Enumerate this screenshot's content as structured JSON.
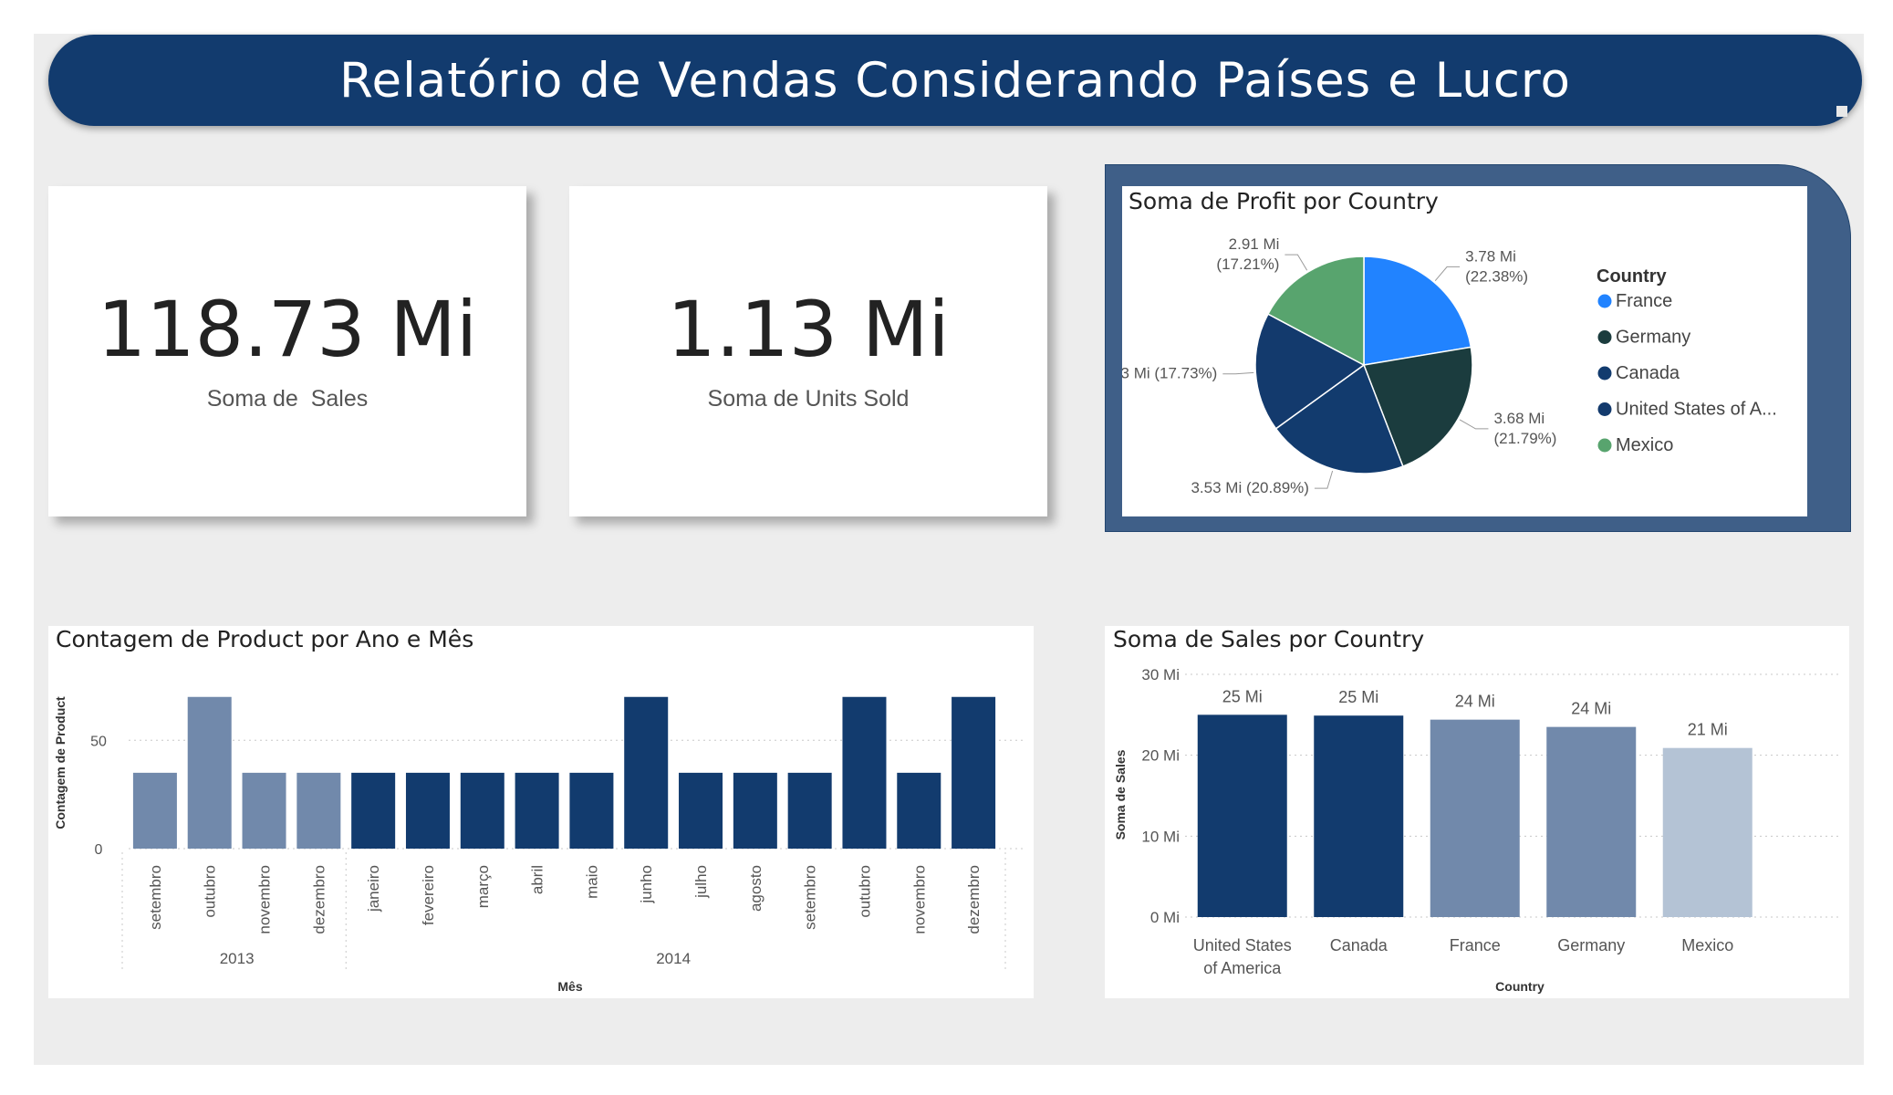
{
  "header": {
    "title": "Relatório de Vendas Considerando Países e Lucro"
  },
  "kpis": [
    {
      "value": "118.73 Mi",
      "label": "Soma de  Sales"
    },
    {
      "value": "1.13 Mi",
      "label": "Soma de Units Sold"
    }
  ],
  "colors": {
    "navy": "#123b6e",
    "steel": "#7189ab",
    "light_steel": "#b4c3d5",
    "france": "#2183ff",
    "germany": "#1b3c3e",
    "canada": "#123b6e",
    "usa": "#133a6d",
    "mexico": "#58a46e"
  },
  "chart_data": [
    {
      "type": "pie",
      "title": "Soma de Profit por Country",
      "legend_title": "Country",
      "legend_position": "right",
      "slices": [
        {
          "name": "France",
          "legend_label": "France",
          "value": 3.78,
          "label": "3.78 Mi (22.38%)",
          "color": "#2183ff"
        },
        {
          "name": "Germany",
          "legend_label": "Germany",
          "value": 3.68,
          "label": "3.68 Mi (21.79%)",
          "color": "#1b3c3e"
        },
        {
          "name": "Canada",
          "legend_label": "Canada",
          "value": 3.53,
          "label": "3.53 Mi (20.89%)",
          "color": "#123b6e"
        },
        {
          "name": "United States of America",
          "legend_label": "United States of A...",
          "value": 3.0,
          "label": "3 Mi (17.73%)",
          "color": "#133a6d"
        },
        {
          "name": "Mexico",
          "legend_label": "Mexico",
          "value": 2.91,
          "label": "2.91 Mi (17.21%)",
          "color": "#58a46e"
        }
      ]
    },
    {
      "type": "bar",
      "title": "Contagem de Product por Ano e Mês",
      "xlabel": "Mês",
      "ylabel": "Contagem de Product",
      "ylim": [
        0,
        80
      ],
      "yticks": [
        0,
        50
      ],
      "grid": true,
      "groups": [
        {
          "label": "2013",
          "months": [
            "setembro",
            "outubro",
            "novembro",
            "dezembro"
          ],
          "values": [
            35,
            70,
            35,
            35
          ]
        },
        {
          "label": "2014",
          "months": [
            "janeiro",
            "fevereiro",
            "março",
            "abril",
            "maio",
            "junho",
            "julho",
            "agosto",
            "setembro",
            "outubro",
            "novembro",
            "dezembro"
          ],
          "values": [
            35,
            35,
            35,
            35,
            35,
            70,
            35,
            35,
            35,
            70,
            35,
            70
          ]
        }
      ]
    },
    {
      "type": "bar",
      "title": "Soma de Sales por Country",
      "xlabel": "Country",
      "ylabel": "Soma de Sales",
      "ylim": [
        0,
        30
      ],
      "yticks": [
        0,
        10,
        20,
        30
      ],
      "ytick_labels": [
        "0 Mi",
        "10 Mi",
        "20 Mi",
        "30 Mi"
      ],
      "grid": true,
      "categories": [
        "United States of America",
        "Canada",
        "France",
        "Germany",
        "Mexico"
      ],
      "category_lines": [
        [
          "United States",
          "of America"
        ],
        [
          "Canada"
        ],
        [
          "France"
        ],
        [
          "Germany"
        ],
        [
          "Mexico"
        ]
      ],
      "values": [
        25.0,
        24.9,
        24.4,
        23.5,
        20.9
      ],
      "data_labels": [
        "25 Mi",
        "25 Mi",
        "24 Mi",
        "24 Mi",
        "21 Mi"
      ]
    }
  ]
}
